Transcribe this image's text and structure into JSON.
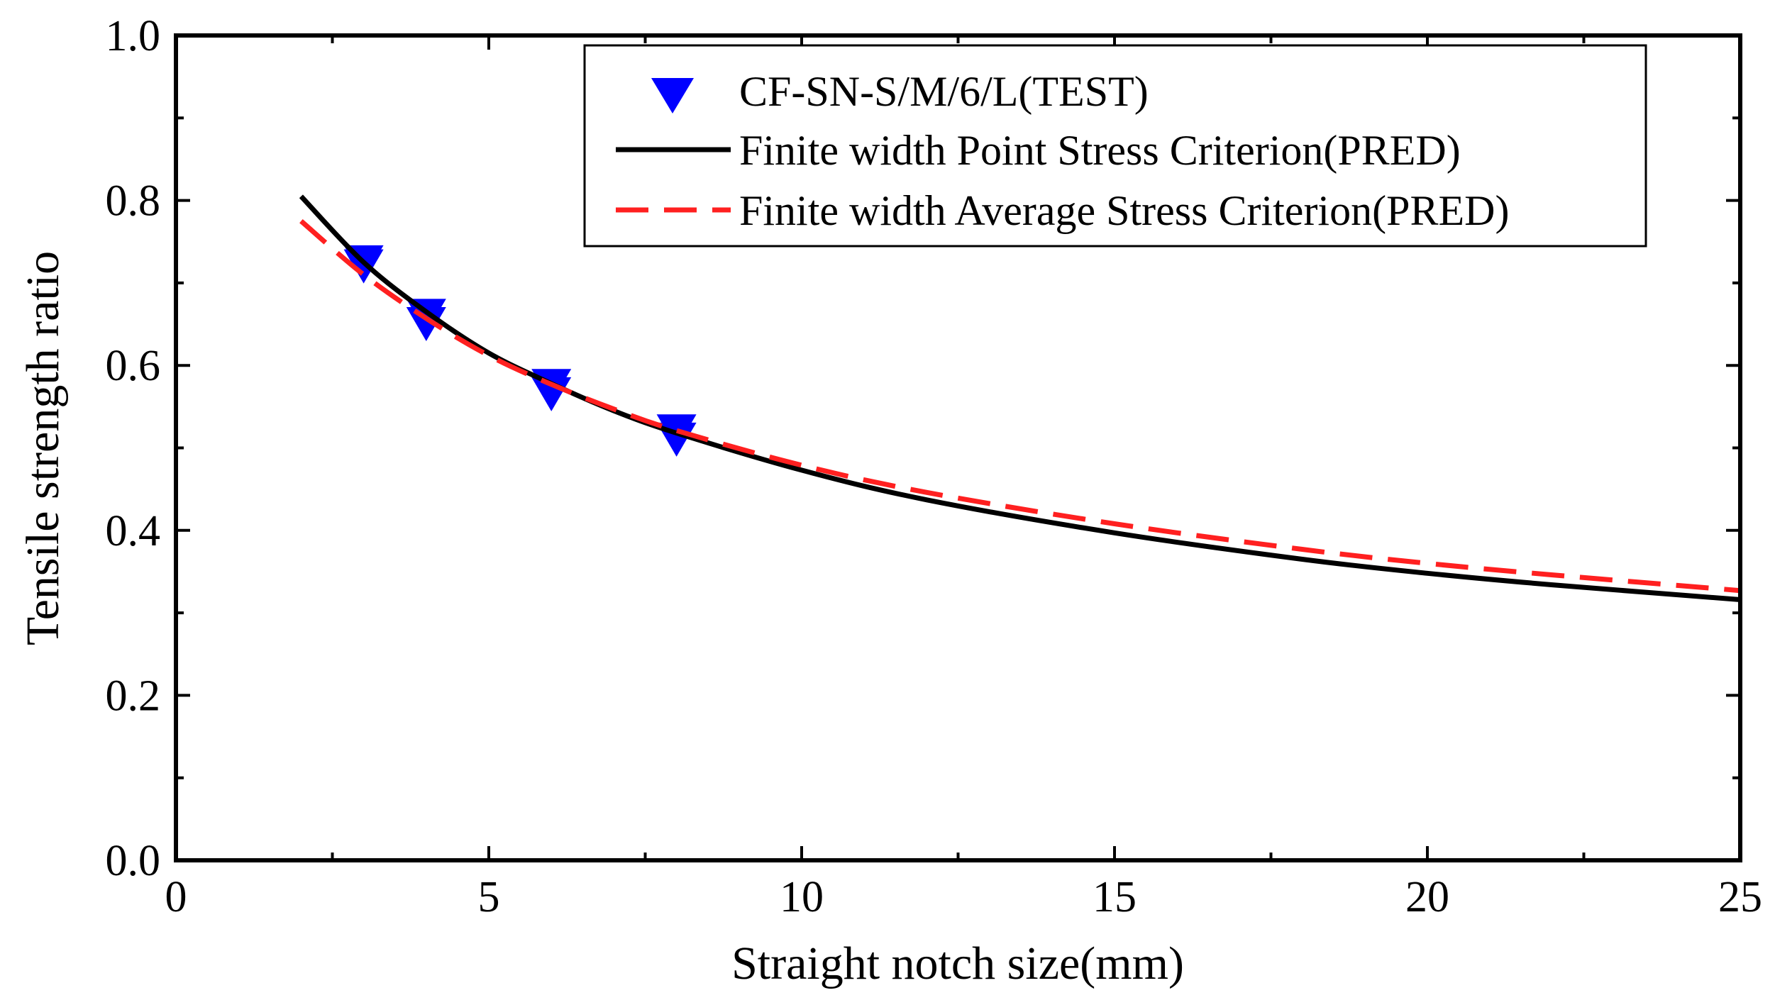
{
  "chart_data": {
    "type": "line",
    "title": "",
    "xlabel": "Straight notch size(mm)",
    "ylabel": "Tensile strength ratio",
    "xlim": [
      0,
      25
    ],
    "ylim": [
      0.0,
      1.0
    ],
    "x_ticks": [
      0,
      5,
      10,
      15,
      20,
      25
    ],
    "x_tick_labels": [
      "0",
      "5",
      "10",
      "15",
      "20",
      "25"
    ],
    "x_minor_ticks": [
      2.5,
      7.5,
      12.5,
      17.5,
      22.5
    ],
    "y_ticks": [
      0.0,
      0.2,
      0.4,
      0.6,
      0.8,
      1.0
    ],
    "y_tick_labels": [
      "0.0",
      "0.2",
      "0.4",
      "0.6",
      "0.8",
      "1.0"
    ],
    "y_minor_ticks": [
      0.1,
      0.3,
      0.5,
      0.7,
      0.9
    ],
    "grid": false,
    "legend_position": "top-right",
    "series": [
      {
        "name": "CF-SN-S/M/6/L(TEST)",
        "kind": "scatter",
        "marker": "triangle-down",
        "color": "#0000ff",
        "points": [
          {
            "x": 3,
            "y": 0.72
          },
          {
            "x": 3,
            "y": 0.725
          },
          {
            "x": 4,
            "y": 0.65
          },
          {
            "x": 4,
            "y": 0.66
          },
          {
            "x": 6,
            "y": 0.565
          },
          {
            "x": 6,
            "y": 0.575
          },
          {
            "x": 8,
            "y": 0.51
          },
          {
            "x": 8,
            "y": 0.52
          }
        ]
      },
      {
        "name": "Finite width Point Stress Criterion(PRED)",
        "kind": "line",
        "style": "solid",
        "color": "#000000",
        "x": [
          2,
          3,
          4,
          5,
          6,
          7,
          8,
          10,
          12,
          15,
          18,
          20,
          22,
          25
        ],
        "y": [
          0.805,
          0.725,
          0.665,
          0.615,
          0.578,
          0.545,
          0.518,
          0.473,
          0.437,
          0.397,
          0.365,
          0.348,
          0.334,
          0.316
        ]
      },
      {
        "name": "Finite width Average Stress Criterion(PRED)",
        "kind": "line",
        "style": "dashed",
        "color": "#ff2020",
        "x": [
          2,
          3,
          4,
          5,
          6,
          7,
          8,
          10,
          12,
          15,
          18,
          20,
          22,
          25
        ],
        "y": [
          0.775,
          0.71,
          0.657,
          0.612,
          0.577,
          0.547,
          0.521,
          0.479,
          0.446,
          0.408,
          0.377,
          0.36,
          0.346,
          0.327
        ]
      }
    ]
  }
}
